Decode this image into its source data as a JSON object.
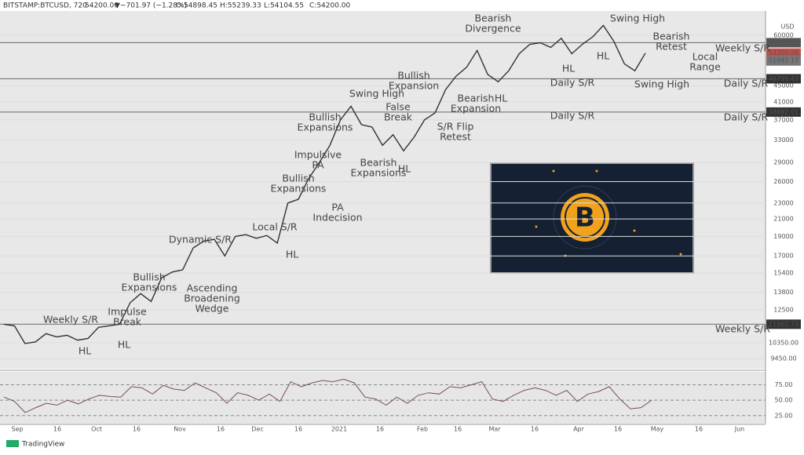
{
  "header": {
    "symbol": "BITSTAMP:BTCUSD, 720",
    "last": "54200.00",
    "arrow": "▼",
    "change": "−701.97 (−1.28%)",
    "open": "O:54898.45",
    "high": "H:55239.33",
    "low": "L:54104.55",
    "close": "C:54200.00",
    "currency": "USD"
  },
  "price_axis": {
    "scale": "log",
    "ylim": [
      8920,
      68800
    ],
    "yticks": [
      60000,
      45000,
      41000,
      37000,
      33000,
      29000,
      26000,
      23000,
      21000,
      19000,
      17000,
      15400,
      13800,
      12500,
      {
        "value": 10350,
        "label": "10350.00"
      },
      {
        "value": 9450,
        "label": "9450.00"
      }
    ]
  },
  "price": {
    "closes": [
      11500,
      11400,
      10300,
      10400,
      10900,
      10700,
      10800,
      10500,
      10600,
      11300,
      11400,
      11500,
      13000,
      13700,
      13100,
      15000,
      15500,
      15700,
      17800,
      18500,
      18700,
      17000,
      19000,
      19200,
      18800,
      19100,
      18300,
      23000,
      23500,
      26500,
      29000,
      32000,
      37000,
      40000,
      36000,
      35500,
      32000,
      34000,
      31000,
      33500,
      37000,
      38500,
      44000,
      47500,
      50000,
      55000,
      48000,
      46000,
      49000,
      54000,
      57000,
      57500,
      56000,
      59000,
      54000,
      57000,
      59500,
      63500,
      58000,
      51000,
      49000,
      54200
    ]
  },
  "levels": [
    {
      "value": 57521.43,
      "label": "57521.43"
    },
    {
      "value": 54200,
      "label": "54200.00"
    },
    {
      "value": 51945.17,
      "label": "51945.17"
    },
    {
      "value": 46799.43,
      "label": "46799.43"
    },
    {
      "value": 38692.01,
      "label": "38692.01"
    },
    {
      "value": 11502.73,
      "label": "11502.73"
    }
  ],
  "countdown": "07:44:04",
  "rsi": {
    "ylim": [
      12,
      96
    ],
    "yticks": [
      {
        "value": 75,
        "label": "75.00"
      },
      {
        "value": 50,
        "label": "50.00"
      },
      {
        "value": 25,
        "label": "25.00"
      }
    ],
    "values": [
      55,
      48,
      30,
      38,
      45,
      42,
      50,
      44,
      52,
      58,
      56,
      55,
      72,
      70,
      60,
      74,
      68,
      66,
      78,
      70,
      62,
      45,
      62,
      58,
      50,
      60,
      48,
      80,
      72,
      78,
      82,
      80,
      84,
      78,
      55,
      52,
      42,
      55,
      45,
      58,
      62,
      60,
      72,
      70,
      75,
      80,
      52,
      48,
      58,
      66,
      70,
      66,
      58,
      66,
      48,
      60,
      64,
      72,
      52,
      36,
      38,
      50
    ]
  },
  "dates": [
    "Sep",
    "16",
    "Oct",
    "16",
    "Nov",
    "16",
    "Dec",
    "16",
    "2021",
    "16",
    "Feb",
    "16",
    "Mar",
    "16",
    "Apr",
    "16",
    "May",
    "16",
    "Jun"
  ],
  "annotations": [
    [
      "Weekly S/R"
    ],
    [
      "HL"
    ],
    [
      "HL"
    ],
    [
      "Impulse",
      "Break"
    ],
    [
      "Bullish",
      "Expansions"
    ],
    [
      "Ascending",
      "Broadening",
      "Wedge"
    ],
    [
      "Dynamic S/R"
    ],
    [
      "Local S/R"
    ],
    [
      "HL"
    ],
    [
      "Bullish",
      "Expansions"
    ],
    [
      "PA",
      "Indecision"
    ],
    [
      "Impulsive",
      "PA"
    ],
    [
      "Bullish",
      "Expansions"
    ],
    [
      "Swing High"
    ],
    [
      "False",
      "Break"
    ],
    [
      "Bearish",
      "Expansions"
    ],
    [
      "HL"
    ],
    [
      "Bullish",
      "Expansion"
    ],
    [
      "S/R Flip",
      "Retest"
    ],
    [
      "Bearish",
      "Expansion"
    ],
    [
      "HL"
    ],
    [
      "Bearish",
      "Divergence"
    ],
    [
      "Daily S/R"
    ],
    [
      "Daily S/R"
    ],
    [
      "HL"
    ],
    [
      "HL"
    ],
    [
      "Swing High"
    ],
    [
      "Bearish",
      "Retest"
    ],
    [
      "Local",
      "Range"
    ],
    [
      "Swing High"
    ]
  ],
  "level_labels": [
    "Weekly S/R",
    "Daily S/R",
    "Daily S/R",
    "Weekly S/R"
  ],
  "logo": "B",
  "footer": "TradingView"
}
